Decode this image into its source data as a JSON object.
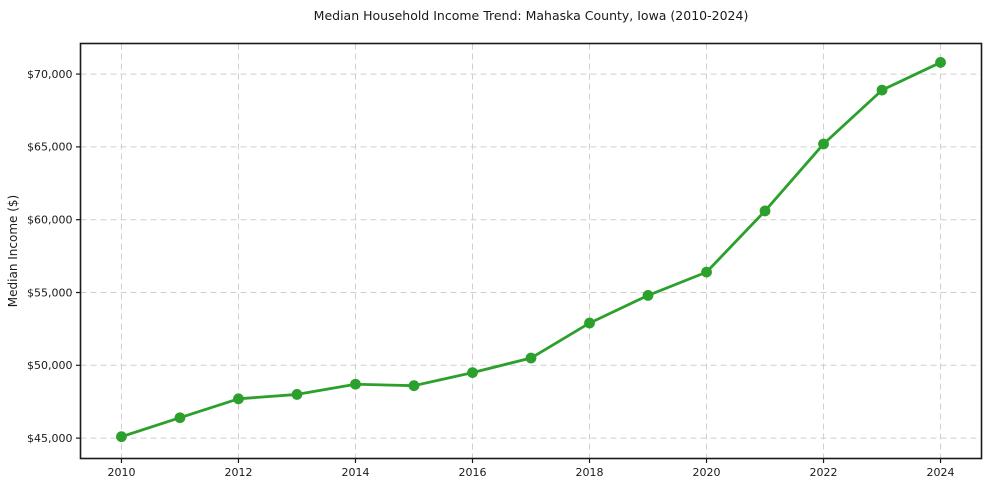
{
  "chart_data": {
    "type": "line",
    "title": "Median Household Income Trend: Mahaska County, Iowa (2010-2024)",
    "xlabel": "",
    "ylabel": "Median Income ($)",
    "series": [
      {
        "name": "Median Household Income",
        "x": [
          2010,
          2011,
          2012,
          2013,
          2014,
          2015,
          2016,
          2017,
          2018,
          2019,
          2020,
          2021,
          2022,
          2023,
          2024
        ],
        "values": [
          45100,
          46400,
          47700,
          48000,
          48700,
          48600,
          49500,
          50500,
          52900,
          54800,
          56400,
          60600,
          65200,
          68900,
          70800
        ]
      }
    ],
    "x_ticks": [
      2010,
      2012,
      2014,
      2016,
      2018,
      2020,
      2022,
      2024
    ],
    "x_tick_labels": [
      "2010",
      "2012",
      "2014",
      "2016",
      "2018",
      "2020",
      "2022",
      "2024"
    ],
    "y_ticks": [
      45000,
      50000,
      55000,
      60000,
      65000,
      70000
    ],
    "y_tick_labels": [
      "$45,000",
      "$50,000",
      "$55,000",
      "$60,000",
      "$65,000",
      "$70,000"
    ],
    "xlim": [
      2009.3,
      2024.7
    ],
    "ylim": [
      43600,
      72100
    ],
    "grid": true,
    "grid_style": "dashed",
    "legend": false,
    "line_color": "#2ca02c",
    "marker": "circle",
    "grid_color": "#cfcfcf",
    "spine_color": "#1a1a1a",
    "background_color": "#ffffff"
  }
}
